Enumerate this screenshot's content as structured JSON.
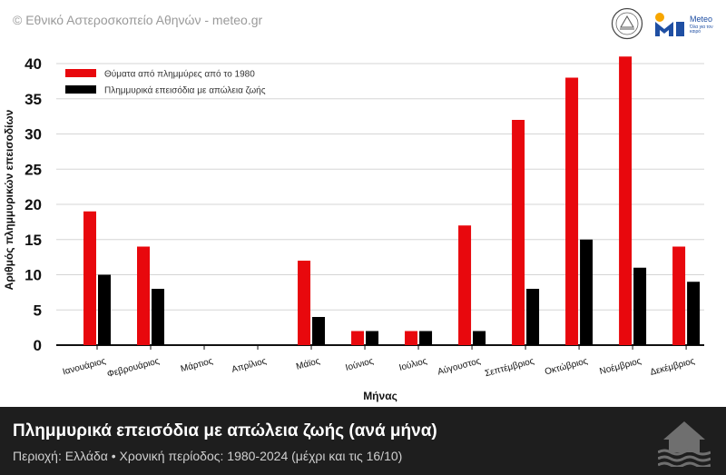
{
  "header": {
    "credit": "© Εθνικό Αστεροσκοπείο Αθηνών - meteo.gr",
    "logo_name": "Meteo",
    "logo_tagline": "Όλα για τον καιρό"
  },
  "footer": {
    "title": "Πλημμυρικά επεισόδια με απώλεια ζωής (ανά μήνα)",
    "subtitle": "Περιοχή: Ελλάδα • Χρονική περίοδος: 1980-2024 (μέχρι και τις 16/10)"
  },
  "icons": {
    "seal": "observatory-seal-icon",
    "logo": "meteo-logo-icon",
    "house": "flooded-house-icon"
  },
  "colors": {
    "victims": "#e8080d",
    "episodes": "#000000",
    "footer_bg": "#1e1e1e"
  },
  "chart_data": {
    "type": "bar",
    "title": "",
    "xlabel": "Μήνας",
    "ylabel": "Αριθμός πλημμυρικών επεισοδίων",
    "ylim": [
      0,
      40
    ],
    "yticks": [
      0,
      5,
      10,
      15,
      20,
      25,
      30,
      35,
      40
    ],
    "grid": true,
    "legend_position": "top-left",
    "categories": [
      "Ιανουάριος",
      "Φεβρουάριος",
      "Μάρτιος",
      "Απρίλιος",
      "Μάϊος",
      "Ιούνιος",
      "Ιούλιος",
      "Αύγουστος",
      "Σεπτέμβριος",
      "Οκτώβριος",
      "Νοέμβριος",
      "Δεκέμβριος"
    ],
    "series": [
      {
        "name": "Θύματα από πλημμύρες από το 1980",
        "color": "#e8080d",
        "values": [
          19,
          14,
          0,
          0,
          12,
          2,
          2,
          17,
          32,
          38,
          41,
          14
        ]
      },
      {
        "name": "Πλημμυρικά επεισόδια με απώλεια ζωής",
        "color": "#000000",
        "values": [
          10,
          8,
          0,
          0,
          4,
          2,
          2,
          2,
          8,
          15,
          11,
          9
        ]
      }
    ]
  }
}
